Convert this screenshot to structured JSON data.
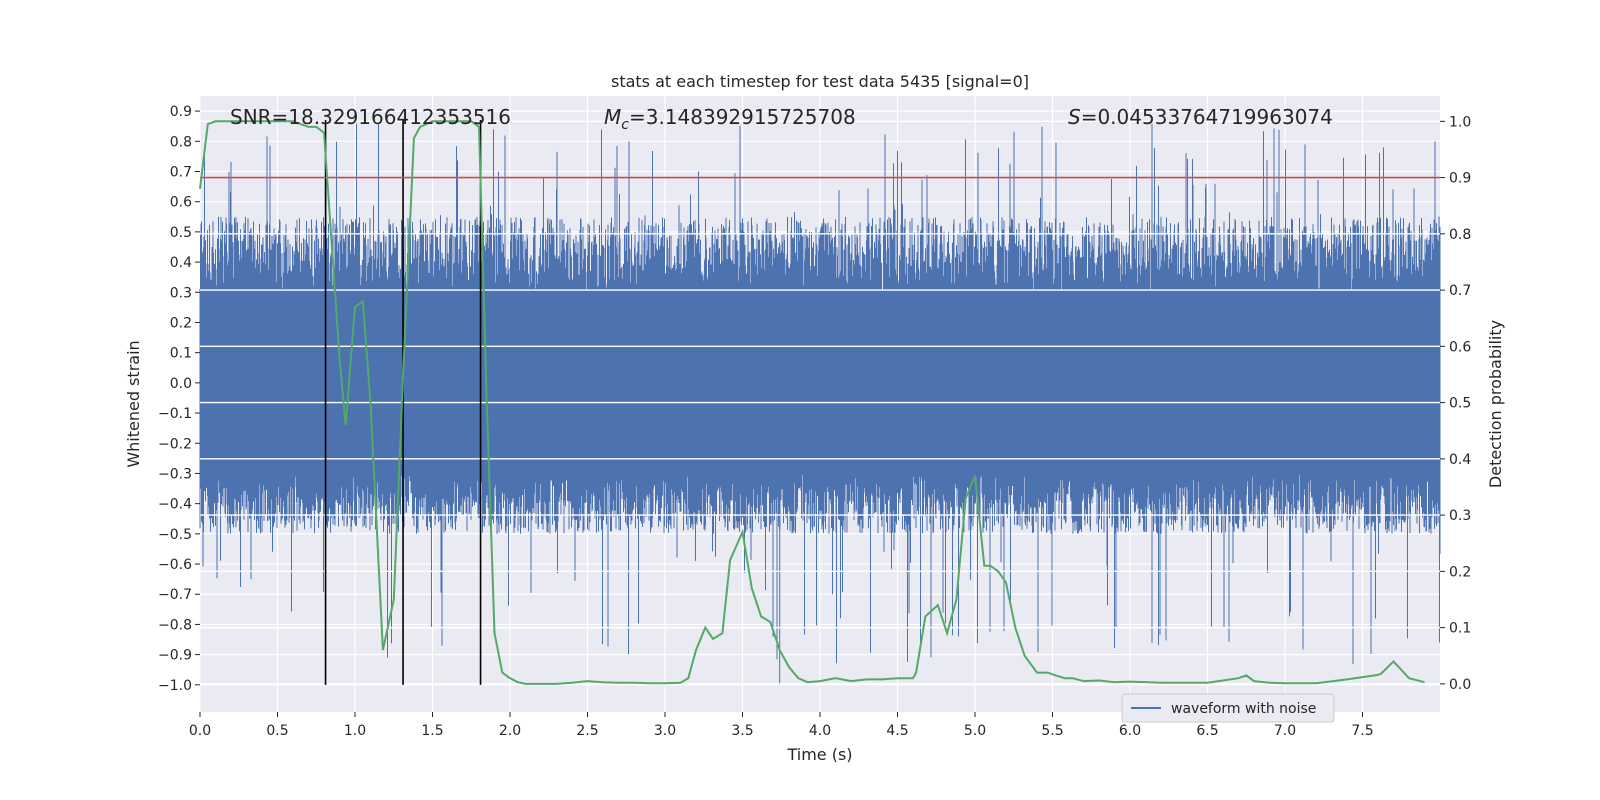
{
  "chart_data": {
    "type": "line",
    "title": "stats at each timestep for test data 5435 [signal=0]",
    "xlabel": "Time (s)",
    "ylabel": "Whitened strain",
    "ylabel_right": "Detection probability",
    "xlim": [
      0.0,
      8.0
    ],
    "ylim": [
      -1.09,
      0.95
    ],
    "ylim_right": [
      -0.05,
      1.045
    ],
    "x_ticks": [
      "0.0",
      "0.5",
      "1.0",
      "1.5",
      "2.0",
      "2.5",
      "3.0",
      "3.5",
      "4.0",
      "4.5",
      "5.0",
      "5.5",
      "6.0",
      "6.5",
      "7.0",
      "7.5"
    ],
    "x_tick_values": [
      0,
      0.5,
      1,
      1.5,
      2,
      2.5,
      3,
      3.5,
      4,
      4.5,
      5,
      5.5,
      6,
      6.5,
      7,
      7.5
    ],
    "y_ticks": [
      "0.9",
      "0.8",
      "0.7",
      "0.6",
      "0.5",
      "0.4",
      "0.3",
      "0.2",
      "0.1",
      "0.0",
      "−0.1",
      "−0.2",
      "−0.3",
      "−0.4",
      "−0.5",
      "−0.6",
      "−0.7",
      "−0.8",
      "−0.9",
      "−1.0"
    ],
    "y_tick_values": [
      0.9,
      0.8,
      0.7,
      0.6,
      0.5,
      0.4,
      0.3,
      0.2,
      0.1,
      0.0,
      -0.1,
      -0.2,
      -0.3,
      -0.4,
      -0.5,
      -0.6,
      -0.7,
      -0.8,
      -0.9,
      -1.0
    ],
    "y_right_ticks": [
      "1.0",
      "0.9",
      "0.8",
      "0.7",
      "0.6",
      "0.5",
      "0.4",
      "0.3",
      "0.2",
      "0.1",
      "0.0"
    ],
    "y_right_tick_values": [
      1.0,
      0.9,
      0.8,
      0.7,
      0.6,
      0.5,
      0.4,
      0.3,
      0.2,
      0.1,
      0.0
    ],
    "annotations": {
      "snr": "SNR=18.329166412353516",
      "mc_prefix": "M",
      "mc_sub": "c",
      "mc_value": "=3.148392915725708",
      "s_prefix": "S",
      "s_value": "=0.04533764719963074"
    },
    "legend": {
      "label": "waveform with noise",
      "placement": "lower-right"
    },
    "threshold": {
      "value": 0.9,
      "axis": "right"
    },
    "vertical_lines": [
      0.81,
      1.31,
      1.81
    ],
    "vline_bottom": -1.0,
    "waveform": {
      "name": "waveform with noise",
      "x_range": [
        0.0,
        8.0
      ],
      "core_band": [
        -0.28,
        0.28
      ],
      "envelope_typical": [
        -0.5,
        0.55
      ],
      "spike_max": 0.86,
      "spike_min": -1.0
    },
    "series": [
      {
        "name": "detection probability",
        "axis": "right",
        "x": [
          0.0,
          0.05,
          0.1,
          0.2,
          0.3,
          0.4,
          0.5,
          0.6,
          0.7,
          0.75,
          0.8,
          0.85,
          0.9,
          0.94,
          1.0,
          1.05,
          1.1,
          1.18,
          1.25,
          1.31,
          1.38,
          1.42,
          1.5,
          1.6,
          1.7,
          1.75,
          1.8,
          1.85,
          1.9,
          1.95,
          2.0,
          2.05,
          2.1,
          2.2,
          2.3,
          2.4,
          2.5,
          2.6,
          2.7,
          2.8,
          2.9,
          3.0,
          3.1,
          3.15,
          3.2,
          3.26,
          3.31,
          3.37,
          3.42,
          3.5,
          3.56,
          3.62,
          3.68,
          3.74,
          3.8,
          3.86,
          3.92,
          4.0,
          4.1,
          4.2,
          4.3,
          4.4,
          4.5,
          4.6,
          4.62,
          4.68,
          4.76,
          4.82,
          4.88,
          4.94,
          5.0,
          5.06,
          5.1,
          5.15,
          5.2,
          5.26,
          5.32,
          5.4,
          5.47,
          5.52,
          5.58,
          5.63,
          5.7,
          5.8,
          5.9,
          6.0,
          6.2,
          6.5,
          6.7,
          6.75,
          6.8,
          6.9,
          7.0,
          7.2,
          7.4,
          7.5,
          7.6,
          7.62,
          7.7,
          7.8,
          7.9
        ],
        "values": [
          0.88,
          0.995,
          1.0,
          1.0,
          1.0,
          1.0,
          1.0,
          1.0,
          0.99,
          0.99,
          0.98,
          0.78,
          0.58,
          0.46,
          0.67,
          0.68,
          0.5,
          0.06,
          0.15,
          0.55,
          0.97,
          0.99,
          1.0,
          1.0,
          1.0,
          1.0,
          0.99,
          0.5,
          0.09,
          0.02,
          0.01,
          0.003,
          0.0,
          0.0,
          0.0,
          0.002,
          0.005,
          0.003,
          0.002,
          0.002,
          0.001,
          0.001,
          0.002,
          0.01,
          0.06,
          0.1,
          0.08,
          0.09,
          0.22,
          0.27,
          0.17,
          0.12,
          0.11,
          0.06,
          0.03,
          0.01,
          0.003,
          0.005,
          0.01,
          0.005,
          0.008,
          0.008,
          0.01,
          0.01,
          0.02,
          0.12,
          0.14,
          0.09,
          0.15,
          0.33,
          0.37,
          0.21,
          0.21,
          0.2,
          0.18,
          0.1,
          0.05,
          0.02,
          0.02,
          0.015,
          0.01,
          0.01,
          0.005,
          0.006,
          0.003,
          0.004,
          0.002,
          0.002,
          0.01,
          0.015,
          0.005,
          0.002,
          0.001,
          0.001,
          0.008,
          0.012,
          0.016,
          0.018,
          0.04,
          0.01,
          0.003
        ]
      }
    ]
  }
}
